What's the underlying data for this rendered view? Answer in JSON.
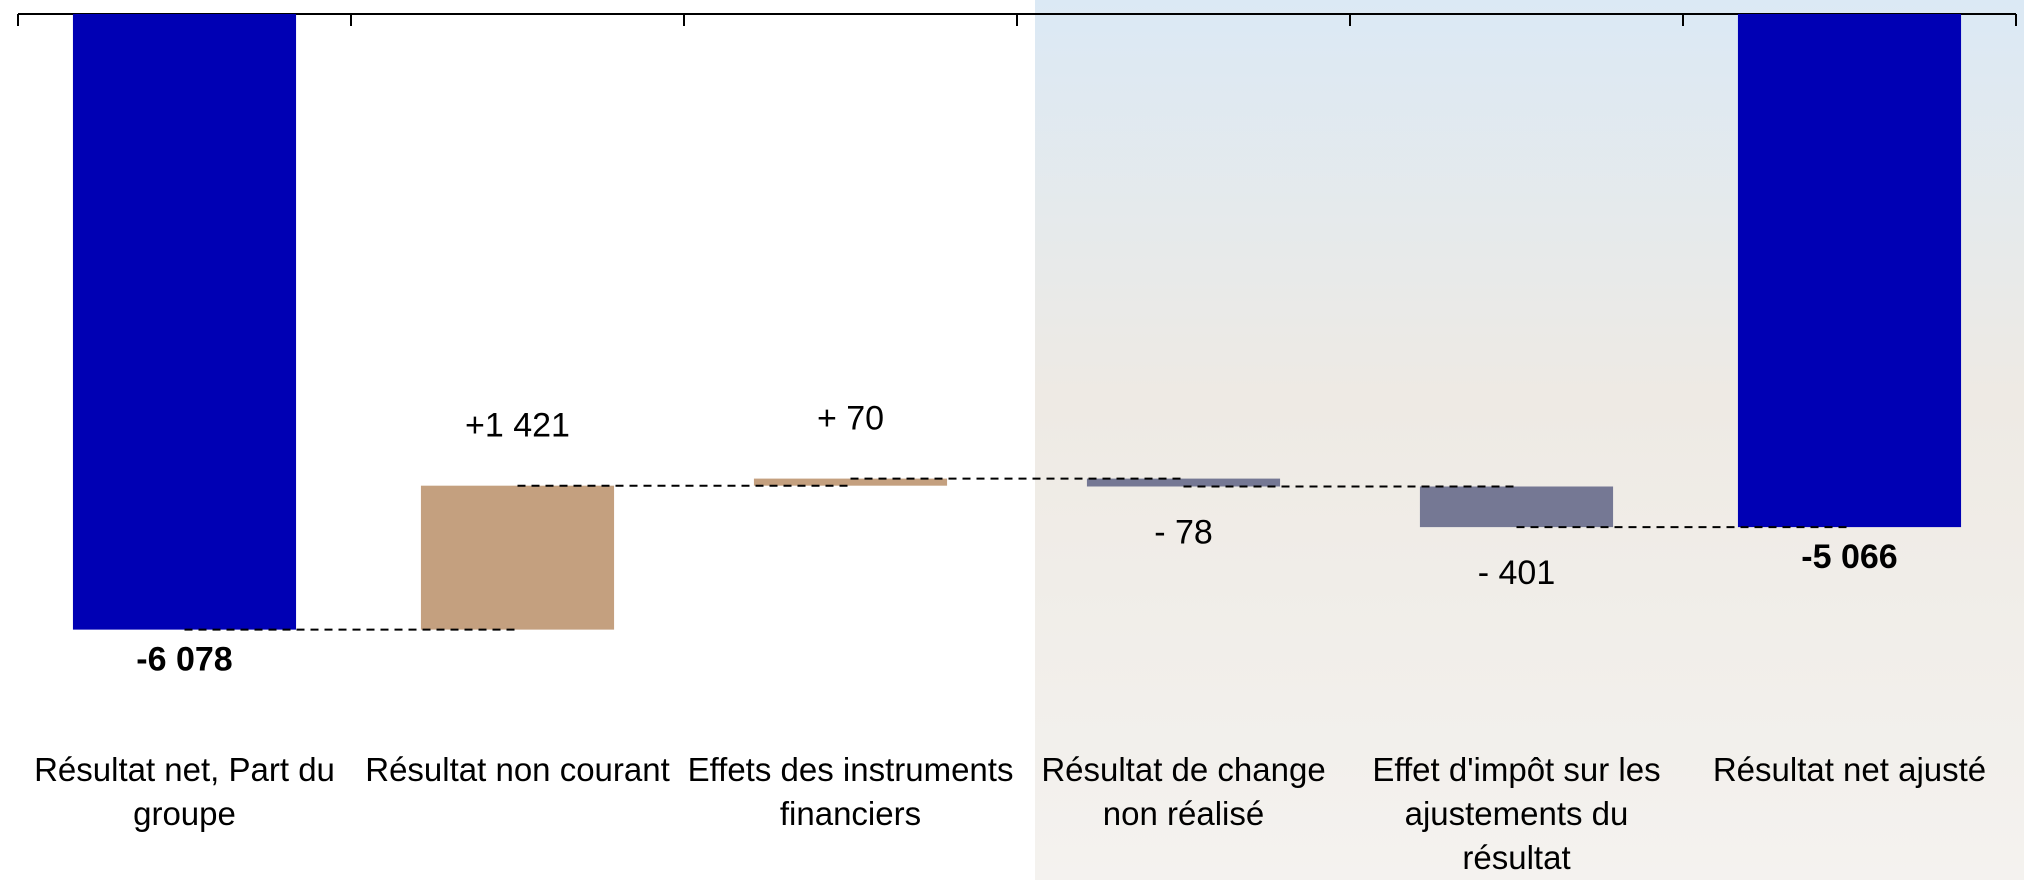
{
  "chart_data": {
    "type": "waterfall",
    "categories": [
      "Résultat net, Part du groupe",
      "Résultat non courant",
      "Effets des instruments financiers",
      "Résultat de change non réalisé",
      "Effet d'impôt sur les ajustements du résultat",
      "Résultat net ajusté"
    ],
    "values": [
      -6078,
      1421,
      70,
      -78,
      -401,
      -5066
    ],
    "value_labels": [
      "-6 078",
      "+1 421",
      "+ 70",
      "- 78",
      "- 401",
      "-5 066"
    ],
    "totals": [
      true,
      false,
      false,
      false,
      false,
      true
    ],
    "colors": [
      "#0000b4",
      "#c4a07f",
      "#c4a07f",
      "#757894",
      "#757894",
      "#0000b4"
    ],
    "ylim": [
      -7000,
      0
    ]
  }
}
